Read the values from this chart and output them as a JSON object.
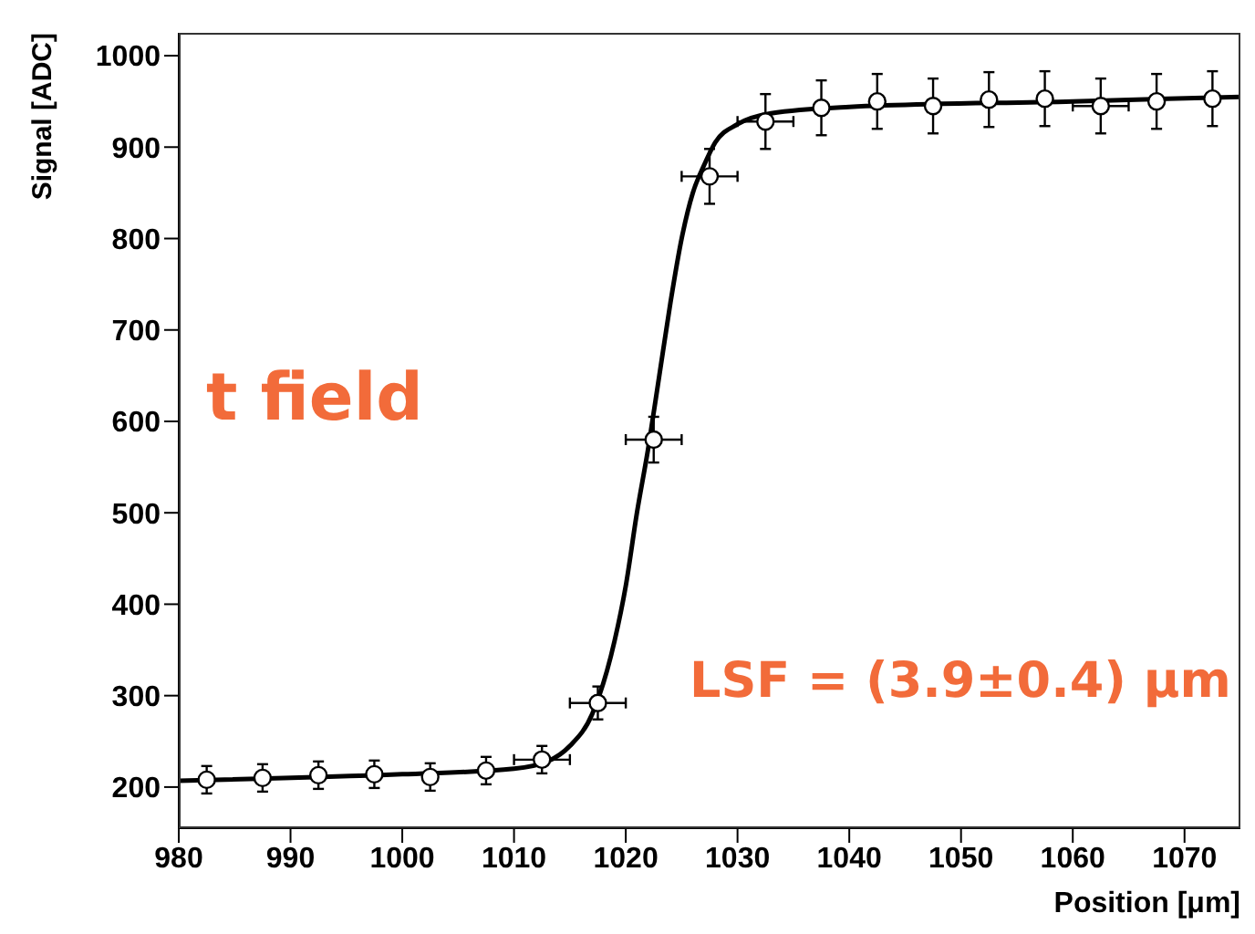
{
  "chart_data": {
    "type": "scatter",
    "xlabel": "Position [μm]",
    "ylabel": "Signal [ADC]",
    "xlim": [
      980,
      1075
    ],
    "xticks": [
      980,
      990,
      1000,
      1010,
      1020,
      1030,
      1040,
      1050,
      1060,
      1070
    ],
    "ylim": [
      155,
      1025
    ],
    "yticks": [
      200,
      300,
      400,
      500,
      600,
      700,
      800,
      900,
      1000
    ],
    "grid": false,
    "marker": "circle",
    "annotations": [
      "LSF = (3.9±0.4) µm",
      "t field"
    ],
    "series": [
      {
        "type": "scatter",
        "color": "#000000",
        "x": [
          982.5,
          987.5,
          992.5,
          997.5,
          1002.5,
          1007.5,
          1012.5,
          1017.5,
          1022.5,
          1027.5,
          1032.5,
          1037.5,
          1042.5,
          1047.5,
          1052.5,
          1057.5,
          1062.5,
          1067.5,
          1072.5
        ],
        "values": [
          208,
          210,
          213,
          214,
          211,
          218,
          230,
          292,
          580,
          868,
          928,
          943,
          950,
          945,
          952,
          953,
          945,
          950,
          953
        ],
        "errors": [
          15,
          15,
          15,
          15,
          15,
          15,
          15,
          18,
          25,
          30,
          30,
          30,
          30,
          30,
          30,
          30,
          30,
          30,
          30
        ],
        "xerrors": [
          null,
          null,
          null,
          null,
          null,
          null,
          2.5,
          2.5,
          2.5,
          2.5,
          2.5,
          null,
          null,
          null,
          null,
          null,
          2.5,
          null,
          null
        ]
      },
      {
        "type": "line",
        "color": "#000000",
        "marker": "none",
        "line_style": "solid",
        "x": [
          980,
          1000,
          1010,
          1013,
          1015,
          1017,
          1019,
          1020,
          1021,
          1022,
          1023,
          1024,
          1025,
          1026,
          1027,
          1028,
          1030,
          1033,
          1040,
          1060,
          1075
        ],
        "values": [
          207,
          214,
          220,
          228,
          245,
          280,
          360,
          420,
          500,
          570,
          650,
          730,
          800,
          850,
          880,
          905,
          925,
          937,
          944,
          950,
          955
        ]
      }
    ]
  }
}
